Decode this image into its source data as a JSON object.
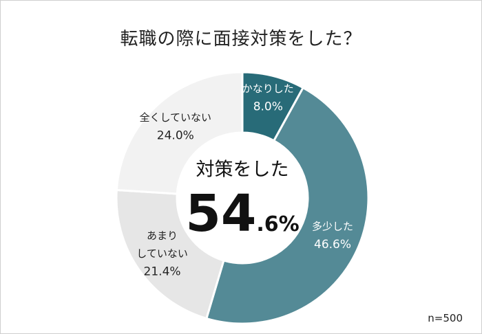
{
  "title": "転職の際に面接対策をした？",
  "sample_size": "n=500",
  "center": {
    "label": "対策をした",
    "value_main": "54",
    "value_suffix": ".6%"
  },
  "chart_data": {
    "type": "pie",
    "donut": true,
    "title": "転職の際に面接対策をした？",
    "slices": [
      {
        "label": "かなりした",
        "value": 8.0,
        "display": "8.0%",
        "color": "#286b78",
        "text_color": "#ffffff"
      },
      {
        "label": "多少した",
        "value": 46.6,
        "display": "46.6%",
        "color": "#548a96",
        "text_color": "#ffffff"
      },
      {
        "label": "あまりしていない",
        "lines": [
          "あまり",
          "していない"
        ],
        "value": 21.4,
        "display": "21.4%",
        "color": "#e6e6e6",
        "text_color": "#222222"
      },
      {
        "label": "全くしていない",
        "value": 24.0,
        "display": "24.0%",
        "color": "#f2f2f2",
        "text_color": "#222222"
      }
    ]
  }
}
